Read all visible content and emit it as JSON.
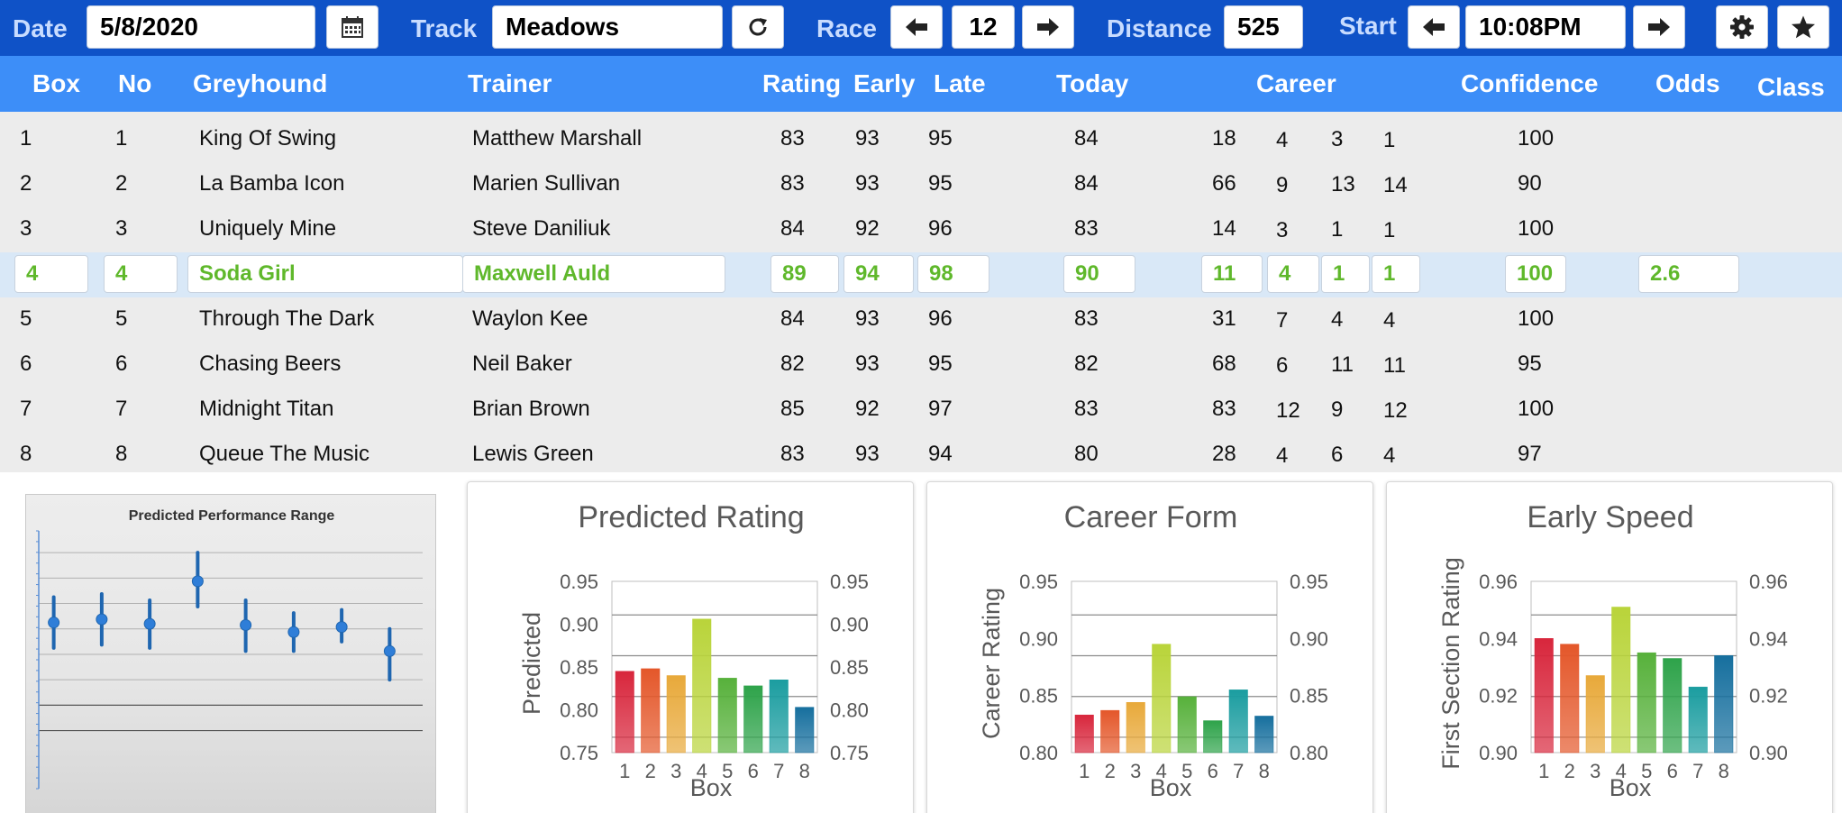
{
  "toolbar": {
    "date_label": "Date",
    "date_value": "5/8/2020",
    "track_label": "Track",
    "track_value": "Meadows",
    "race_label": "Race",
    "race_value": "12",
    "distance_label": "Distance",
    "distance_value": "525",
    "start_label": "Start",
    "start_value": "10:08PM",
    "icons": [
      "calendar-icon",
      "refresh-icon",
      "arrow-left-icon",
      "arrow-right-icon",
      "gear-icon",
      "star-icon"
    ]
  },
  "table": {
    "headers": {
      "box": "Box",
      "no": "No",
      "greyhound": "Greyhound",
      "trainer": "Trainer",
      "rating": "Rating",
      "early": "Early",
      "late": "Late",
      "today": "Today",
      "career": "Career",
      "confidence": "Confidence",
      "odds": "Odds",
      "class": "Class"
    },
    "selected_index": 3,
    "rows": [
      {
        "box": "1",
        "no": "1",
        "greyhound": "King Of Swing",
        "trainer": "Matthew Marshall",
        "rating": "83",
        "early": "93",
        "late": "95",
        "today": "84",
        "career": [
          "18",
          "4",
          "3",
          "1"
        ],
        "confidence": "100",
        "odds": "",
        "class": ""
      },
      {
        "box": "2",
        "no": "2",
        "greyhound": "La Bamba Icon",
        "trainer": "Marien Sullivan",
        "rating": "83",
        "early": "93",
        "late": "95",
        "today": "84",
        "career": [
          "66",
          "9",
          "13",
          "14"
        ],
        "confidence": "90",
        "odds": "",
        "class": ""
      },
      {
        "box": "3",
        "no": "3",
        "greyhound": "Uniquely Mine",
        "trainer": "Steve Daniliuk",
        "rating": "84",
        "early": "92",
        "late": "96",
        "today": "83",
        "career": [
          "14",
          "3",
          "1",
          "1"
        ],
        "confidence": "100",
        "odds": "",
        "class": ""
      },
      {
        "box": "4",
        "no": "4",
        "greyhound": "Soda Girl",
        "trainer": "Maxwell Auld",
        "rating": "89",
        "early": "94",
        "late": "98",
        "today": "90",
        "career": [
          "11",
          "4",
          "1",
          "1"
        ],
        "confidence": "100",
        "odds": "2.6",
        "class": ""
      },
      {
        "box": "5",
        "no": "5",
        "greyhound": "Through The Dark",
        "trainer": "Waylon Kee",
        "rating": "84",
        "early": "93",
        "late": "96",
        "today": "83",
        "career": [
          "31",
          "7",
          "4",
          "4"
        ],
        "confidence": "100",
        "odds": "",
        "class": ""
      },
      {
        "box": "6",
        "no": "6",
        "greyhound": "Chasing Beers",
        "trainer": "Neil Baker",
        "rating": "82",
        "early": "93",
        "late": "95",
        "today": "82",
        "career": [
          "68",
          "6",
          "11",
          "11"
        ],
        "confidence": "95",
        "odds": "",
        "class": ""
      },
      {
        "box": "7",
        "no": "7",
        "greyhound": "Midnight Titan",
        "trainer": "Brian Brown",
        "rating": "85",
        "early": "92",
        "late": "97",
        "today": "83",
        "career": [
          "83",
          "12",
          "9",
          "12"
        ],
        "confidence": "100",
        "odds": "",
        "class": ""
      },
      {
        "box": "8",
        "no": "8",
        "greyhound": "Queue The Music",
        "trainer": "Lewis Green",
        "rating": "83",
        "early": "93",
        "late": "94",
        "today": "80",
        "career": [
          "28",
          "4",
          "6",
          "4"
        ],
        "confidence": "97",
        "odds": "",
        "class": ""
      }
    ]
  },
  "colors": {
    "toolbar_bg": "#0f52c7",
    "header_bg": "#3d8ef8",
    "selected_row_bg": "#d9e8f7",
    "selected_text": "#5fb82b",
    "bar_colors": [
      "#d8263c",
      "#e4572a",
      "#e8a93a",
      "#b9d43a",
      "#57b13b",
      "#2ea34a",
      "#1b9da0",
      "#166f9e"
    ]
  },
  "chart_data": [
    {
      "type": "scatter",
      "title": "Predicted Performance Range",
      "categories": [
        "1",
        "2",
        "3",
        "4",
        "5",
        "6",
        "7",
        "8"
      ],
      "values": [
        0.85,
        0.855,
        0.848,
        0.915,
        0.846,
        0.835,
        0.843,
        0.805
      ],
      "ranges": [
        [
          0.81,
          0.89
        ],
        [
          0.815,
          0.895
        ],
        [
          0.81,
          0.885
        ],
        [
          0.875,
          0.96
        ],
        [
          0.805,
          0.885
        ],
        [
          0.805,
          0.865
        ],
        [
          0.82,
          0.87
        ],
        [
          0.76,
          0.84
        ]
      ],
      "ylim": [
        0.6,
        0.98
      ],
      "grid": true
    },
    {
      "type": "bar",
      "title": "Predicted Rating",
      "xlabel": "Box",
      "ylabel": "Predicted",
      "categories": [
        "1",
        "2",
        "3",
        "4",
        "5",
        "6",
        "7",
        "8"
      ],
      "values": [
        0.845,
        0.848,
        0.84,
        0.906,
        0.837,
        0.828,
        0.835,
        0.803
      ],
      "ylim": [
        0.75,
        0.95
      ],
      "yticks": [
        "0.75",
        "0.80",
        "0.85",
        "0.90",
        "0.95"
      ]
    },
    {
      "type": "bar",
      "title": "Career Form",
      "xlabel": "Box",
      "ylabel": "Career Rating",
      "categories": [
        "1",
        "2",
        "3",
        "4",
        "5",
        "6",
        "7",
        "8"
      ],
      "values": [
        0.833,
        0.837,
        0.844,
        0.895,
        0.849,
        0.828,
        0.855,
        0.832
      ],
      "ylim": [
        0.8,
        0.95
      ],
      "yticks": [
        "0.80",
        "0.85",
        "0.90",
        "0.95"
      ]
    },
    {
      "type": "bar",
      "title": "Early Speed",
      "xlabel": "Box",
      "ylabel": "First Section Rating",
      "categories": [
        "1",
        "2",
        "3",
        "4",
        "5",
        "6",
        "7",
        "8"
      ],
      "values": [
        0.94,
        0.938,
        0.927,
        0.951,
        0.935,
        0.933,
        0.923,
        0.934
      ],
      "ylim": [
        0.9,
        0.96
      ],
      "yticks": [
        "0.90",
        "0.92",
        "0.94",
        "0.96"
      ]
    }
  ]
}
